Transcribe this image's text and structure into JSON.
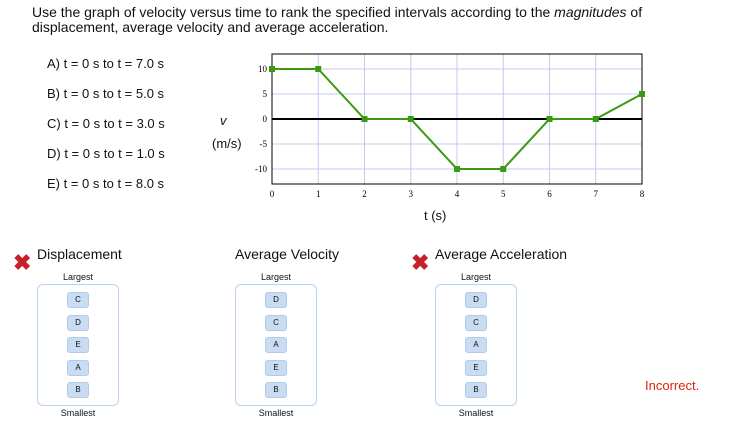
{
  "prompt": {
    "pre": "Use the graph of velocity versus time to rank the specified intervals according to the ",
    "em": "magnitudes",
    "post": " of displacement, average velocity and average acceleration."
  },
  "options": [
    "A) t = 0 s to t = 7.0 s",
    "B) t = 0 s to t = 5.0 s",
    "C) t = 0 s to t = 3.0 s",
    "D) t = 0 s to t = 1.0 s",
    "E) t = 0 s to t = 8.0 s"
  ],
  "chart_data": {
    "type": "line",
    "x": [
      0,
      1,
      2,
      3,
      4,
      5,
      6,
      7,
      8
    ],
    "y": [
      10,
      10,
      0,
      0,
      -10,
      -10,
      0,
      0,
      5
    ],
    "xlabel": "t (s)",
    "ylabel_var": "v",
    "ylabel_unit": "(m/s)",
    "xlim": [
      0,
      8
    ],
    "ylim": [
      -13,
      13
    ],
    "xticks": [
      "0",
      "1",
      "2",
      "3",
      "4",
      "5",
      "6",
      "7",
      "8"
    ],
    "yticks": [
      "10",
      "5",
      "0",
      "-5",
      "-10"
    ],
    "ytick_values": [
      10,
      5,
      0,
      -5,
      -10
    ],
    "grid": true,
    "color": "#3a9a12"
  },
  "rankings": [
    {
      "title": "Displacement",
      "largest": "Largest",
      "smallest": "Smallest",
      "items": [
        "C",
        "D",
        "E",
        "A",
        "B"
      ],
      "wrong": true
    },
    {
      "title": "Average Velocity",
      "largest": "Largest",
      "smallest": "Smallest",
      "items": [
        "D",
        "C",
        "A",
        "E",
        "B"
      ],
      "wrong": false
    },
    {
      "title": "Average Acceleration",
      "largest": "Largest",
      "smallest": "Smallest",
      "items": [
        "D",
        "C",
        "A",
        "E",
        "B"
      ],
      "wrong": true
    }
  ],
  "status": "Incorrect."
}
